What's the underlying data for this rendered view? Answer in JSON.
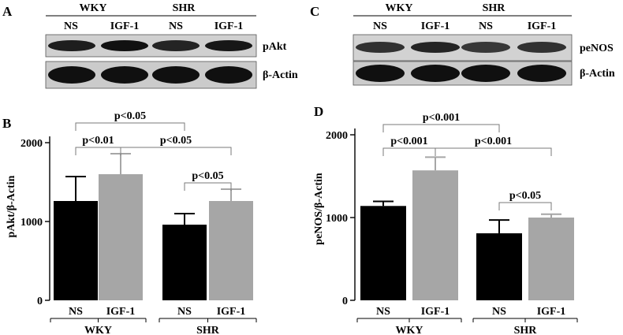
{
  "panels": {
    "A": {
      "letter": "A",
      "group_labels": [
        "WKY",
        "SHR"
      ],
      "lane_labels": [
        "NS",
        "IGF-1",
        "NS",
        "IGF-1"
      ],
      "rows": [
        {
          "label": "pAkt",
          "band_darkness": [
            0.9,
            1.0,
            0.85,
            0.95
          ]
        },
        {
          "label": "β-Actin",
          "band_darkness": [
            1.0,
            1.0,
            1.0,
            1.0
          ]
        }
      ]
    },
    "C": {
      "letter": "C",
      "group_labels": [
        "WKY",
        "SHR"
      ],
      "lane_labels": [
        "NS",
        "IGF-1",
        "NS",
        "IGF-1"
      ],
      "rows": [
        {
          "label": "peNOS",
          "band_darkness": [
            0.75,
            0.85,
            0.7,
            0.75
          ]
        },
        {
          "label": "β-Actin",
          "band_darkness": [
            1.0,
            1.0,
            1.0,
            1.0
          ]
        }
      ]
    }
  },
  "colors": {
    "ns": "#000000",
    "igf": "#a6a6a6"
  },
  "chart_data": [
    {
      "panel": "B",
      "type": "bar",
      "ylabel": "pAkt/β-Actin",
      "ylim": [
        0,
        2000
      ],
      "yticks": [
        0,
        1000,
        2000
      ],
      "groups": [
        "WKY",
        "SHR"
      ],
      "categories": [
        "NS",
        "IGF-1",
        "NS",
        "IGF-1"
      ],
      "values": [
        1260,
        1600,
        960,
        1260
      ],
      "errors": [
        310,
        260,
        140,
        150
      ],
      "comparisons": [
        {
          "from": 0,
          "to": 1,
          "label": "p<0.01"
        },
        {
          "from": 0,
          "to": 2,
          "label": "p<0.05"
        },
        {
          "from": 1,
          "to": 3,
          "label": "p<0.05"
        },
        {
          "from": 2,
          "to": 3,
          "label": "p<0.05"
        }
      ]
    },
    {
      "panel": "D",
      "type": "bar",
      "ylabel": "peNOS/β-Actin",
      "ylim": [
        0,
        2000
      ],
      "yticks": [
        0,
        1000,
        2000
      ],
      "groups": [
        "WKY",
        "SHR"
      ],
      "categories": [
        "NS",
        "IGF-1",
        "NS",
        "IGF-1"
      ],
      "values": [
        1140,
        1570,
        810,
        1000
      ],
      "errors": [
        55,
        160,
        160,
        40
      ],
      "comparisons": [
        {
          "from": 0,
          "to": 1,
          "label": "p<0.001"
        },
        {
          "from": 0,
          "to": 2,
          "label": "p<0.001"
        },
        {
          "from": 1,
          "to": 3,
          "label": "p<0.001"
        },
        {
          "from": 2,
          "to": 3,
          "label": "p<0.05"
        }
      ]
    }
  ]
}
